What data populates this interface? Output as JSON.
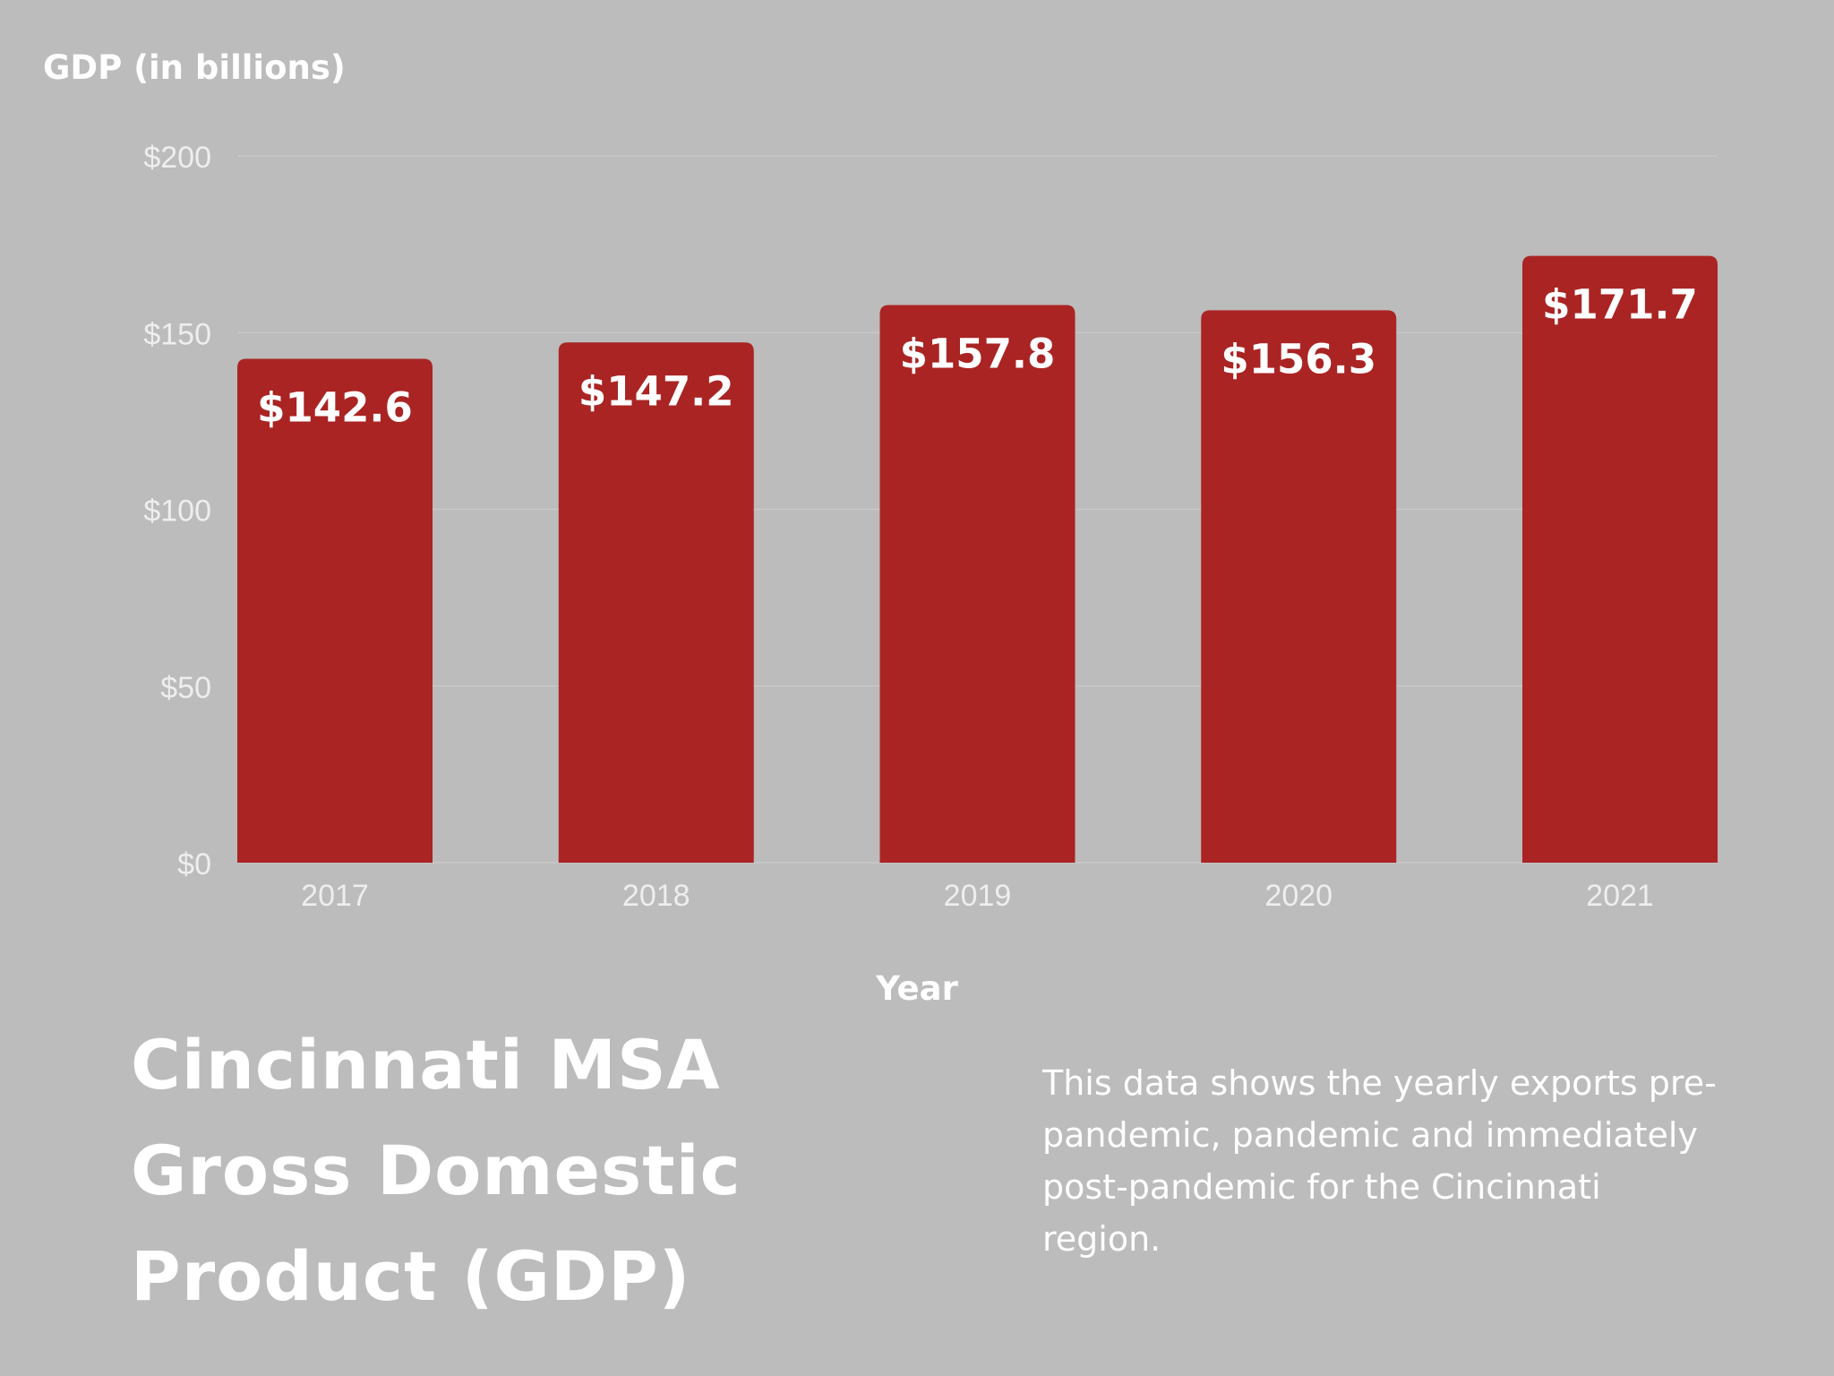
{
  "colors": {
    "background": "#bbbcbb",
    "bar": "#aa2424",
    "gridline": "#c9cac9",
    "tick_text": "#eeeeee",
    "label_text": "#ffffff"
  },
  "chart_data": {
    "type": "bar",
    "ylabel": "GDP (in billions)",
    "xlabel": "Year",
    "categories": [
      "2017",
      "2018",
      "2019",
      "2020",
      "2021"
    ],
    "values": [
      142.6,
      147.2,
      157.8,
      156.3,
      171.7
    ],
    "value_labels": [
      "$142.6",
      "$147.2",
      "$157.8",
      "$156.3",
      "$171.7"
    ],
    "ylim": [
      0,
      200
    ],
    "yticks": [
      0,
      50,
      100,
      150,
      200
    ],
    "ytick_labels": [
      "$0",
      "$50",
      "$100",
      "$150",
      "$200"
    ],
    "grid": true,
    "legend": false
  },
  "title": "Cincinnati MSA Gross Domestic Product (GDP)",
  "description": "This data shows the yearly exports pre-pandemic, pandemic and immediately post-pandemic for the Cincinnati region."
}
